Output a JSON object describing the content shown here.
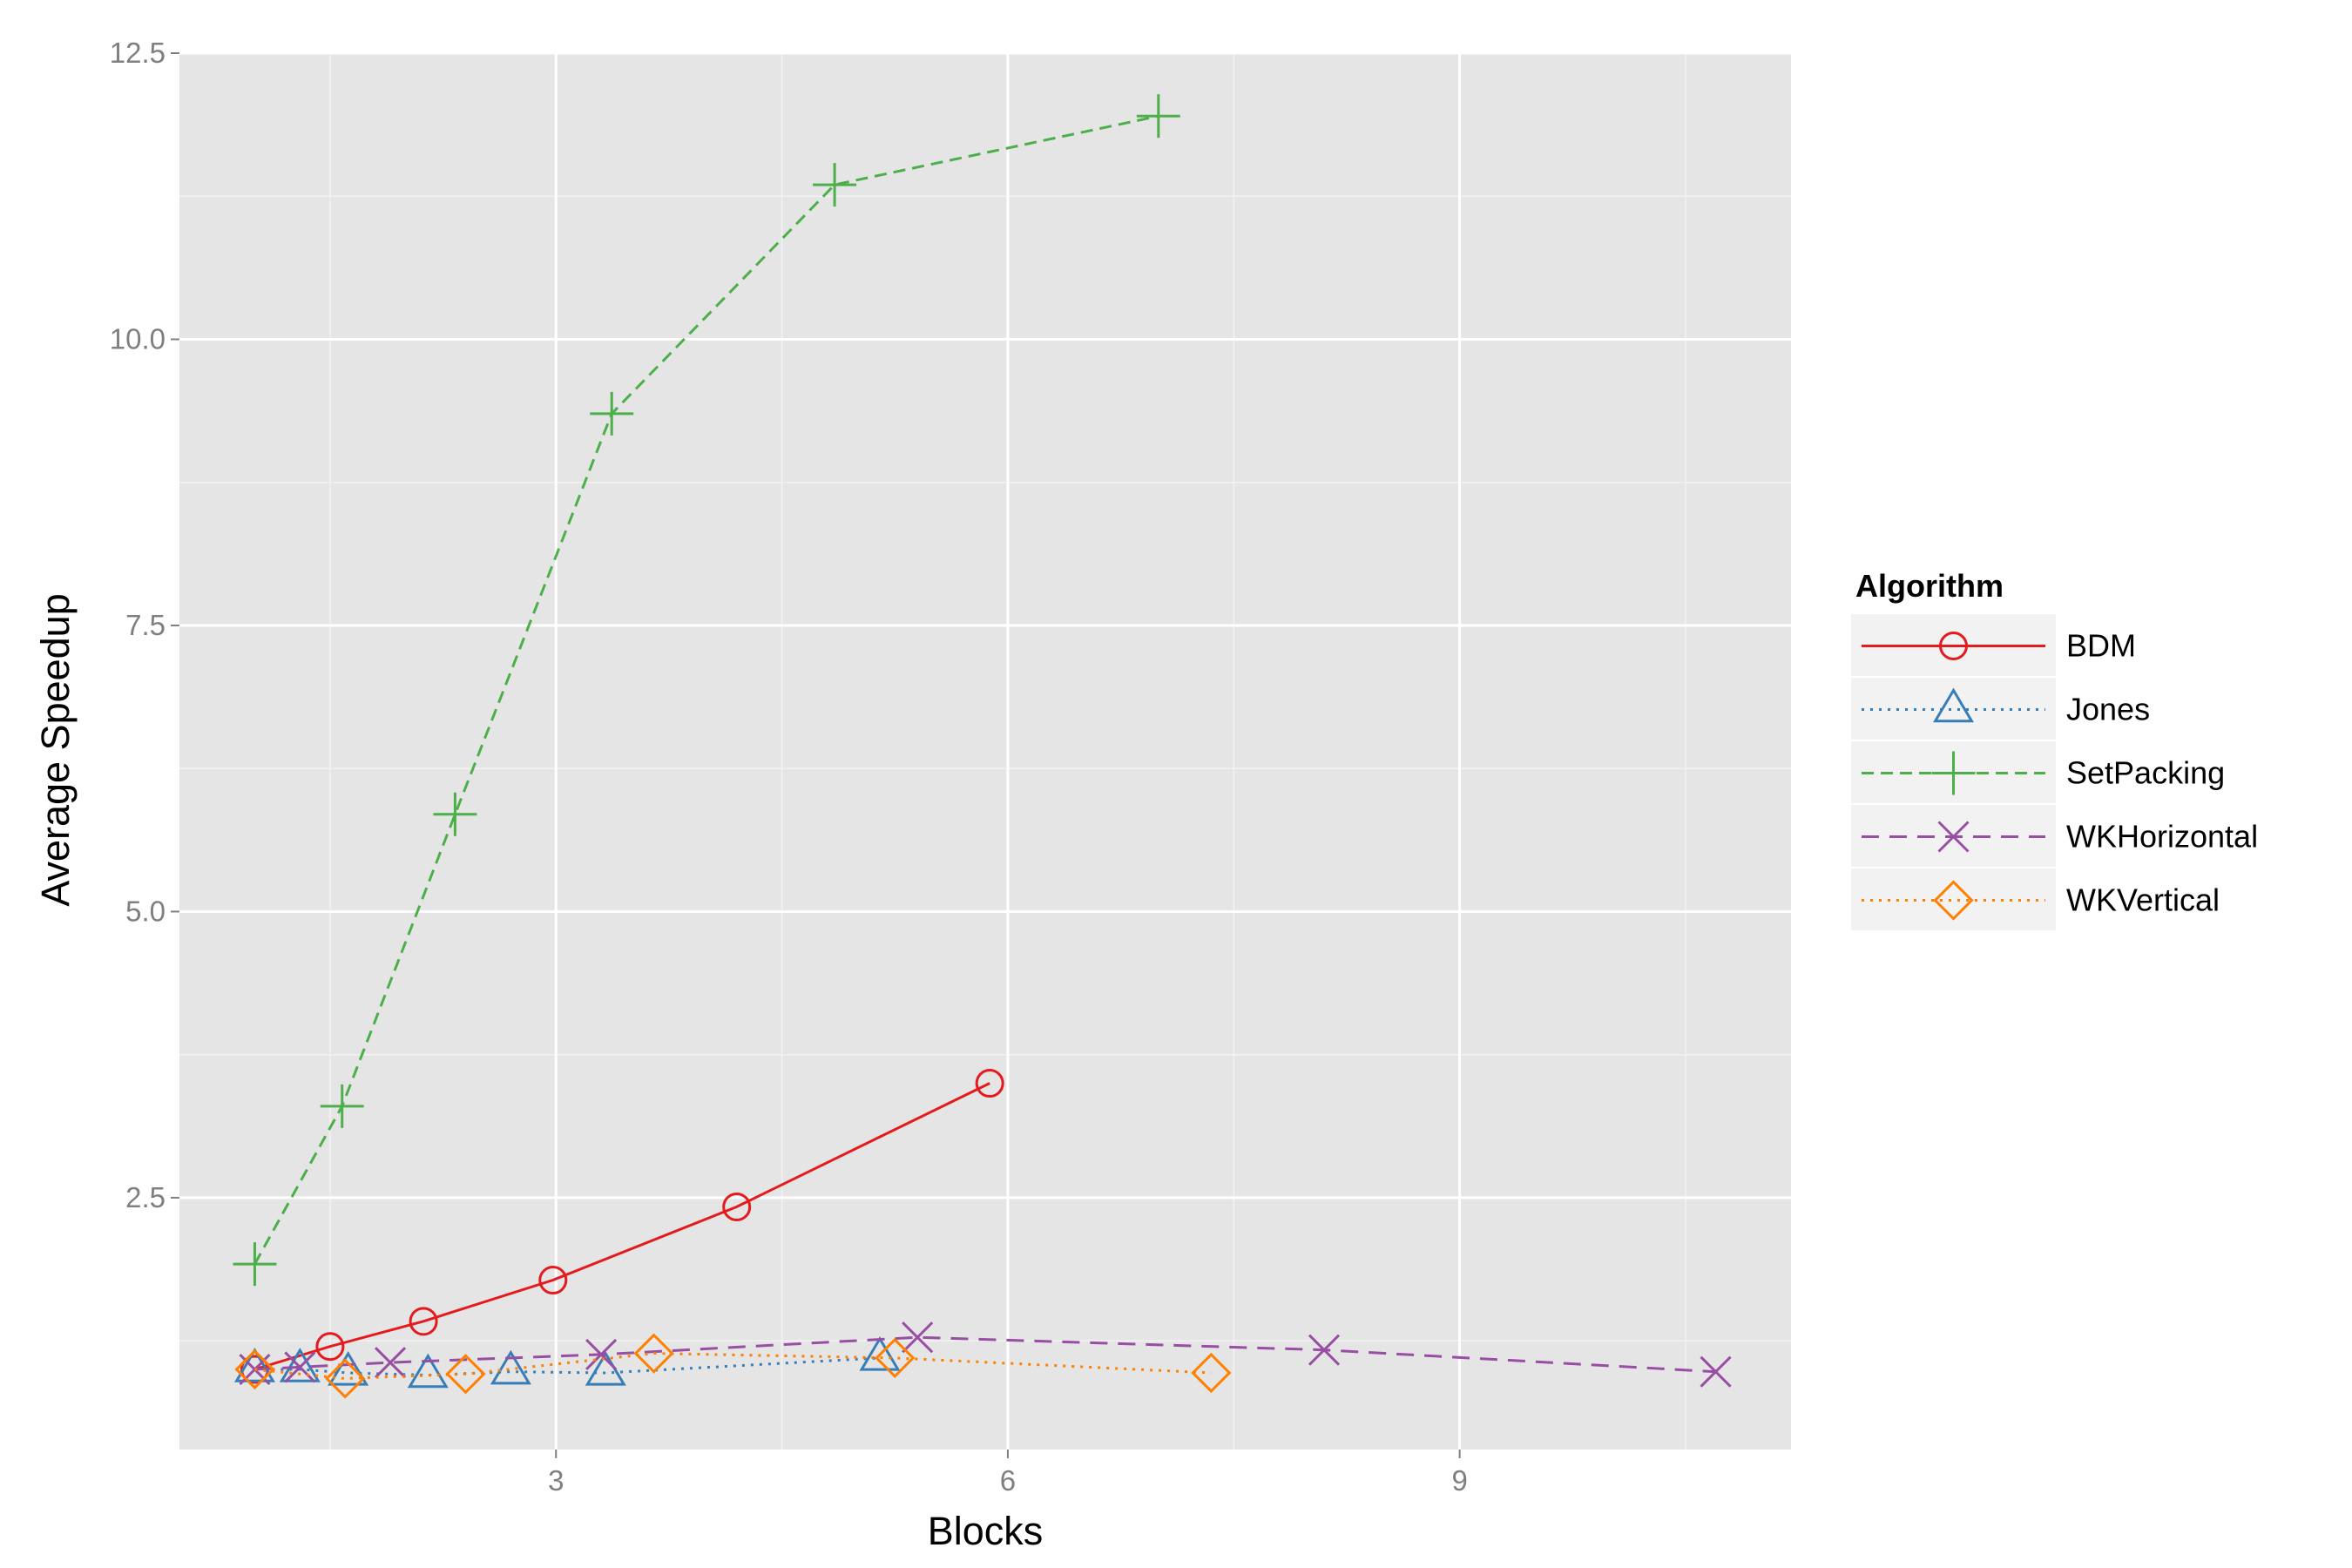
{
  "chart_data": {
    "type": "line",
    "title": "",
    "xlabel": "Blocks",
    "ylabel": "Average Speedup",
    "xlim": [
      0.5,
      11.2
    ],
    "ylim": [
      0.3,
      12.5
    ],
    "x_ticks": [
      3,
      6,
      9
    ],
    "x_tick_labels": [
      "3",
      "6",
      "9"
    ],
    "y_ticks": [
      2.5,
      5.0,
      7.5,
      10.0,
      12.5
    ],
    "y_tick_labels": [
      "2.5",
      "5.0",
      "7.5",
      "10.0",
      "12.5"
    ],
    "grid": true,
    "legend": {
      "title": "Algorithm",
      "position": "right"
    },
    "series": [
      {
        "name": "BDM",
        "color": "#e41a1c",
        "dash": "solid",
        "marker": "circle",
        "points": [
          [
            1.0,
            1.0
          ],
          [
            1.5,
            1.2
          ],
          [
            2.12,
            1.42
          ],
          [
            2.98,
            1.78
          ],
          [
            4.2,
            2.42
          ],
          [
            5.88,
            3.5
          ]
        ]
      },
      {
        "name": "Jones",
        "color": "#377eb8",
        "dash": "dotted",
        "marker": "triangle",
        "points": [
          [
            1.0,
            1.0
          ],
          [
            1.3,
            1.0
          ],
          [
            1.62,
            0.97
          ],
          [
            2.15,
            0.95
          ],
          [
            2.7,
            0.98
          ],
          [
            3.33,
            0.97
          ],
          [
            5.15,
            1.1
          ]
        ]
      },
      {
        "name": "SetPacking",
        "color": "#4daf4a",
        "dash": "dashed",
        "marker": "plus",
        "points": [
          [
            1.0,
            1.92
          ],
          [
            1.58,
            3.3
          ],
          [
            2.33,
            5.85
          ],
          [
            3.37,
            9.35
          ],
          [
            4.85,
            11.35
          ],
          [
            7.0,
            11.95
          ]
        ]
      },
      {
        "name": "WKHorizontal",
        "color": "#984ea3",
        "dash": "longdash",
        "marker": "x",
        "points": [
          [
            1.0,
            1.0
          ],
          [
            1.3,
            1.02
          ],
          [
            1.9,
            1.06
          ],
          [
            3.3,
            1.13
          ],
          [
            5.4,
            1.28
          ],
          [
            8.1,
            1.17
          ],
          [
            10.7,
            0.98
          ]
        ]
      },
      {
        "name": "WKVertical",
        "color": "#ff7f00",
        "dash": "dotted",
        "marker": "diamond",
        "points": [
          [
            1.0,
            1.0
          ],
          [
            1.6,
            0.92
          ],
          [
            2.4,
            0.96
          ],
          [
            3.65,
            1.14
          ],
          [
            5.25,
            1.1
          ],
          [
            7.35,
            0.97
          ]
        ]
      }
    ]
  }
}
